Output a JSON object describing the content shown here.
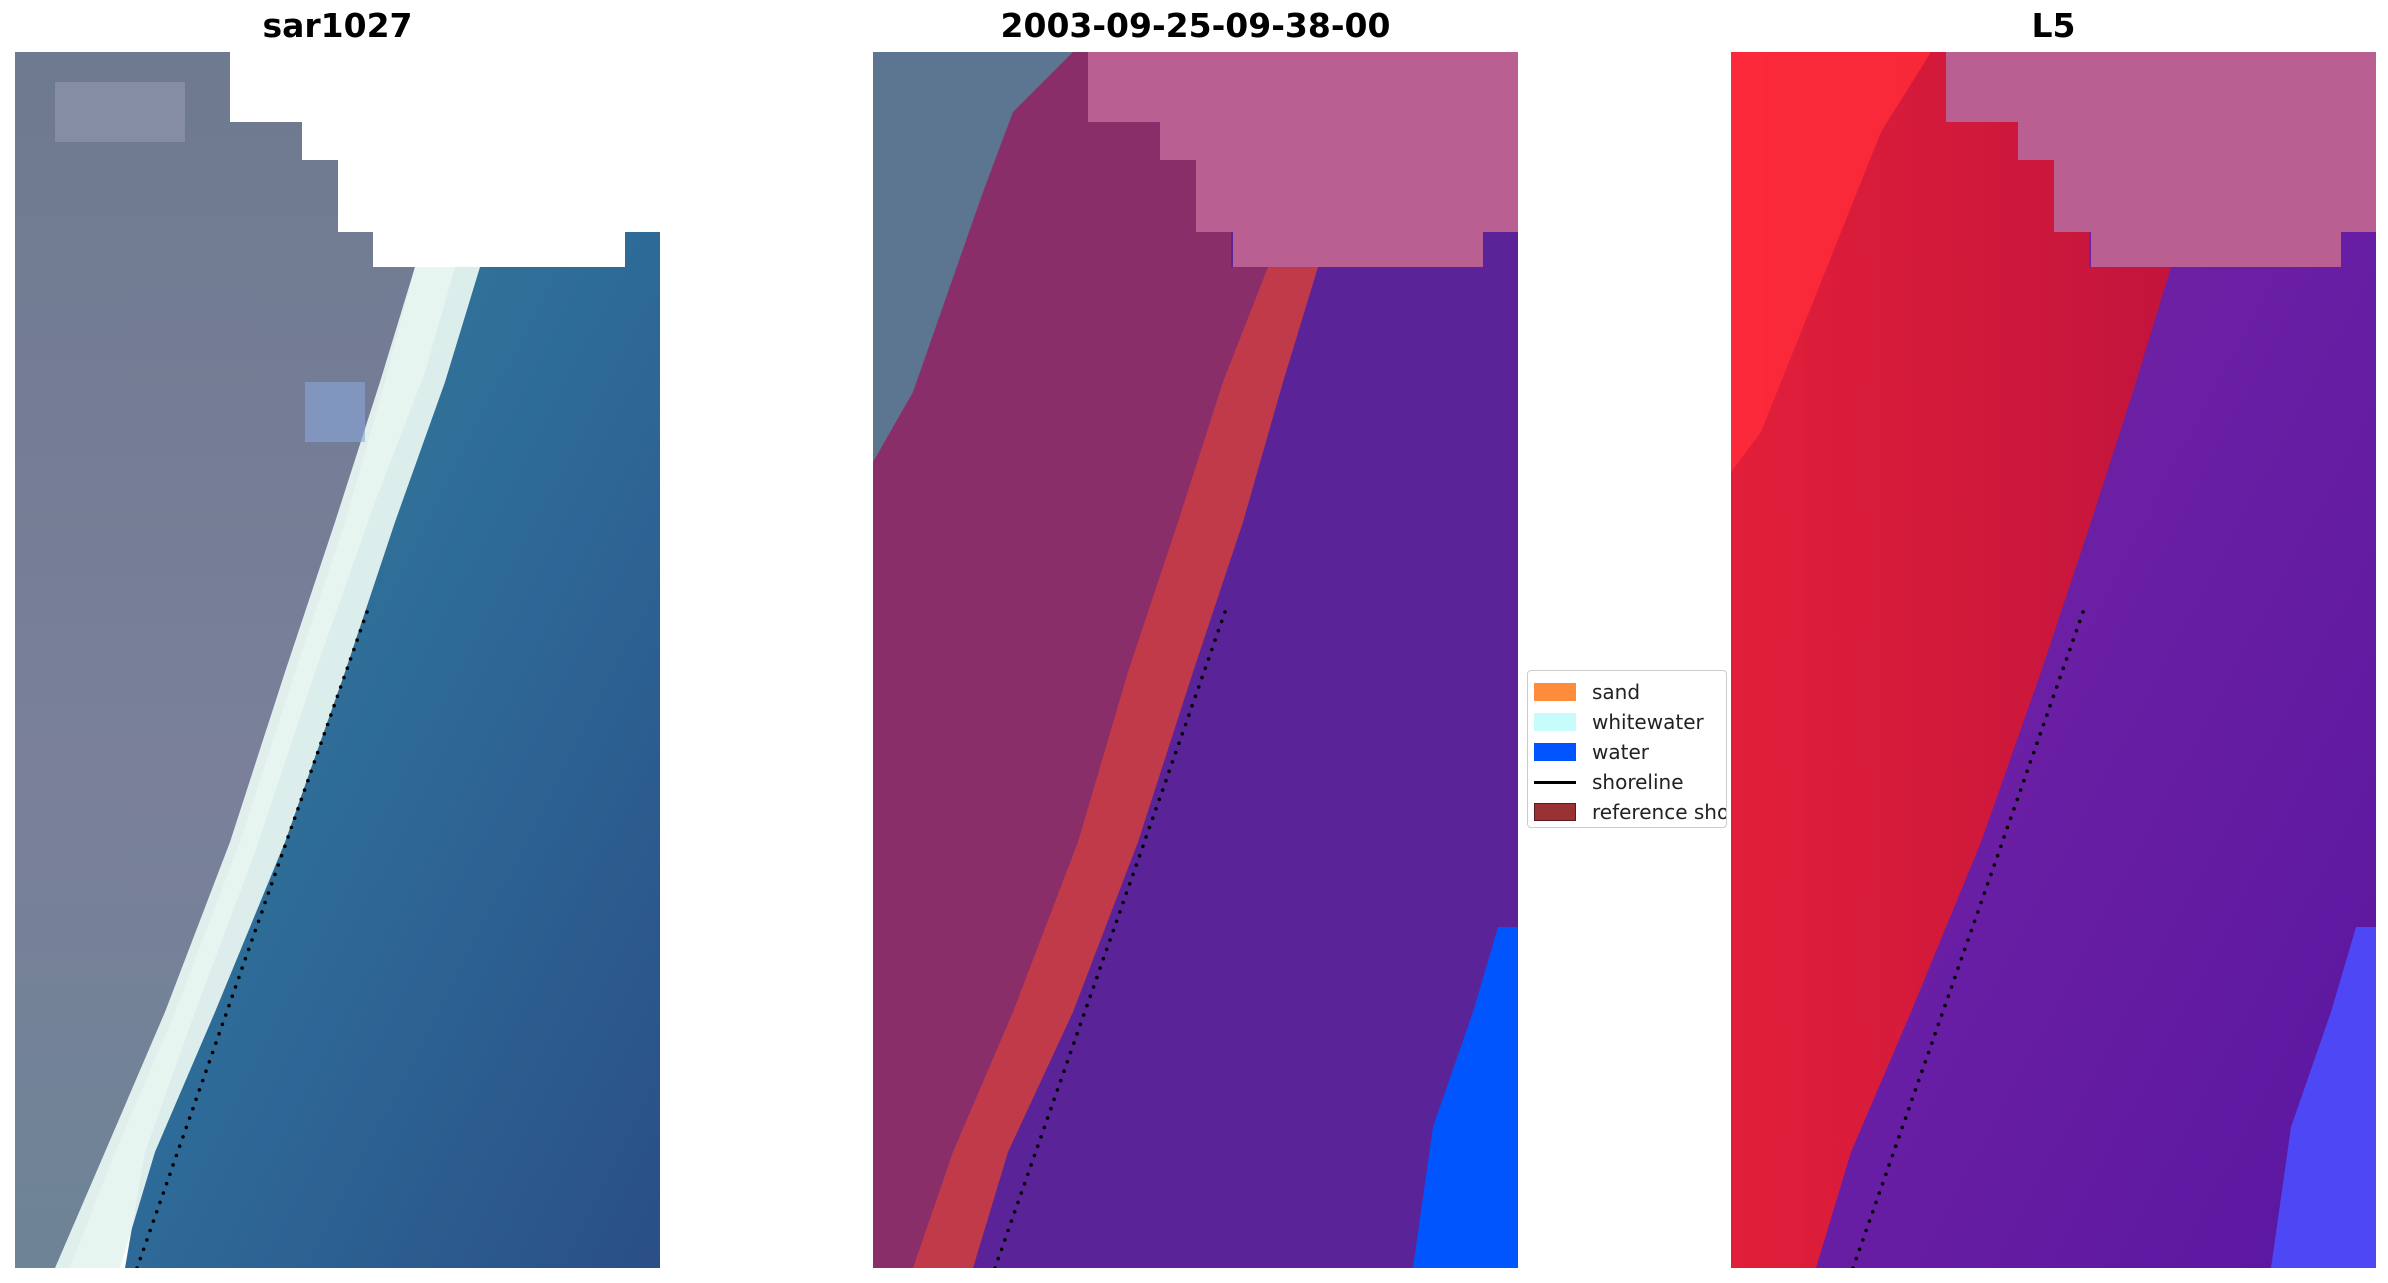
{
  "panels": [
    {
      "title": "sar1027"
    },
    {
      "title": "2003-09-25-09-38-00"
    },
    {
      "title": "L5"
    }
  ],
  "legend": {
    "items": [
      {
        "label": "sand",
        "color": "#ff8c3a",
        "kind": "patch"
      },
      {
        "label": "whitewater",
        "color": "#c8fbfb",
        "kind": "patch"
      },
      {
        "label": "water",
        "color": "#0055ff",
        "kind": "patch"
      },
      {
        "label": "shoreline",
        "color": "#000000",
        "kind": "line"
      },
      {
        "label": "reference shoreline",
        "color": "#993333",
        "kind": "patch"
      }
    ]
  },
  "colors": {
    "land": "#6e7c92",
    "whitewater": "#dff2ee",
    "water": "#2f6f98",
    "class_land": "#8a2e6a",
    "class_sand": "#c13a4a",
    "class_water": "#56239a",
    "class_water_bright": "#0055ff",
    "class_nodata": "#b95f92",
    "index_land": "#c0153a",
    "index_water": "#6a1aa0",
    "shoreline": "#000000"
  },
  "icons": {
    "shoreline_marker": "dot-icon"
  }
}
